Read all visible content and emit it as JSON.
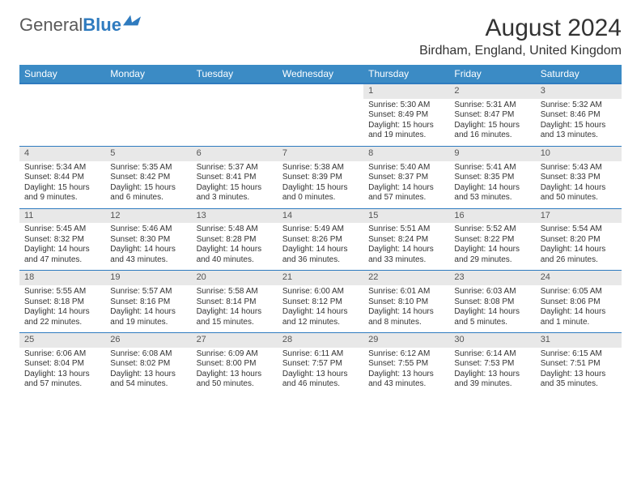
{
  "brand": {
    "part1": "General",
    "part2": "Blue"
  },
  "title": "August 2024",
  "location": "Birdham, England, United Kingdom",
  "weekdays": [
    "Sunday",
    "Monday",
    "Tuesday",
    "Wednesday",
    "Thursday",
    "Friday",
    "Saturday"
  ],
  "colors": {
    "header_bg": "#3b8bc5",
    "header_text": "#ffffff",
    "rule": "#2f7bbf",
    "daynum_bg": "#e8e8e8",
    "text": "#333333"
  },
  "layout": {
    "first_weekday_index": 4,
    "days_in_month": 31
  },
  "days": {
    "1": {
      "sunrise": "5:30 AM",
      "sunset": "8:49 PM",
      "daylight": "15 hours and 19 minutes."
    },
    "2": {
      "sunrise": "5:31 AM",
      "sunset": "8:47 PM",
      "daylight": "15 hours and 16 minutes."
    },
    "3": {
      "sunrise": "5:32 AM",
      "sunset": "8:46 PM",
      "daylight": "15 hours and 13 minutes."
    },
    "4": {
      "sunrise": "5:34 AM",
      "sunset": "8:44 PM",
      "daylight": "15 hours and 9 minutes."
    },
    "5": {
      "sunrise": "5:35 AM",
      "sunset": "8:42 PM",
      "daylight": "15 hours and 6 minutes."
    },
    "6": {
      "sunrise": "5:37 AM",
      "sunset": "8:41 PM",
      "daylight": "15 hours and 3 minutes."
    },
    "7": {
      "sunrise": "5:38 AM",
      "sunset": "8:39 PM",
      "daylight": "15 hours and 0 minutes."
    },
    "8": {
      "sunrise": "5:40 AM",
      "sunset": "8:37 PM",
      "daylight": "14 hours and 57 minutes."
    },
    "9": {
      "sunrise": "5:41 AM",
      "sunset": "8:35 PM",
      "daylight": "14 hours and 53 minutes."
    },
    "10": {
      "sunrise": "5:43 AM",
      "sunset": "8:33 PM",
      "daylight": "14 hours and 50 minutes."
    },
    "11": {
      "sunrise": "5:45 AM",
      "sunset": "8:32 PM",
      "daylight": "14 hours and 47 minutes."
    },
    "12": {
      "sunrise": "5:46 AM",
      "sunset": "8:30 PM",
      "daylight": "14 hours and 43 minutes."
    },
    "13": {
      "sunrise": "5:48 AM",
      "sunset": "8:28 PM",
      "daylight": "14 hours and 40 minutes."
    },
    "14": {
      "sunrise": "5:49 AM",
      "sunset": "8:26 PM",
      "daylight": "14 hours and 36 minutes."
    },
    "15": {
      "sunrise": "5:51 AM",
      "sunset": "8:24 PM",
      "daylight": "14 hours and 33 minutes."
    },
    "16": {
      "sunrise": "5:52 AM",
      "sunset": "8:22 PM",
      "daylight": "14 hours and 29 minutes."
    },
    "17": {
      "sunrise": "5:54 AM",
      "sunset": "8:20 PM",
      "daylight": "14 hours and 26 minutes."
    },
    "18": {
      "sunrise": "5:55 AM",
      "sunset": "8:18 PM",
      "daylight": "14 hours and 22 minutes."
    },
    "19": {
      "sunrise": "5:57 AM",
      "sunset": "8:16 PM",
      "daylight": "14 hours and 19 minutes."
    },
    "20": {
      "sunrise": "5:58 AM",
      "sunset": "8:14 PM",
      "daylight": "14 hours and 15 minutes."
    },
    "21": {
      "sunrise": "6:00 AM",
      "sunset": "8:12 PM",
      "daylight": "14 hours and 12 minutes."
    },
    "22": {
      "sunrise": "6:01 AM",
      "sunset": "8:10 PM",
      "daylight": "14 hours and 8 minutes."
    },
    "23": {
      "sunrise": "6:03 AM",
      "sunset": "8:08 PM",
      "daylight": "14 hours and 5 minutes."
    },
    "24": {
      "sunrise": "6:05 AM",
      "sunset": "8:06 PM",
      "daylight": "14 hours and 1 minute."
    },
    "25": {
      "sunrise": "6:06 AM",
      "sunset": "8:04 PM",
      "daylight": "13 hours and 57 minutes."
    },
    "26": {
      "sunrise": "6:08 AM",
      "sunset": "8:02 PM",
      "daylight": "13 hours and 54 minutes."
    },
    "27": {
      "sunrise": "6:09 AM",
      "sunset": "8:00 PM",
      "daylight": "13 hours and 50 minutes."
    },
    "28": {
      "sunrise": "6:11 AM",
      "sunset": "7:57 PM",
      "daylight": "13 hours and 46 minutes."
    },
    "29": {
      "sunrise": "6:12 AM",
      "sunset": "7:55 PM",
      "daylight": "13 hours and 43 minutes."
    },
    "30": {
      "sunrise": "6:14 AM",
      "sunset": "7:53 PM",
      "daylight": "13 hours and 39 minutes."
    },
    "31": {
      "sunrise": "6:15 AM",
      "sunset": "7:51 PM",
      "daylight": "13 hours and 35 minutes."
    }
  },
  "labels": {
    "sunrise": "Sunrise:",
    "sunset": "Sunset:",
    "daylight": "Daylight:"
  }
}
